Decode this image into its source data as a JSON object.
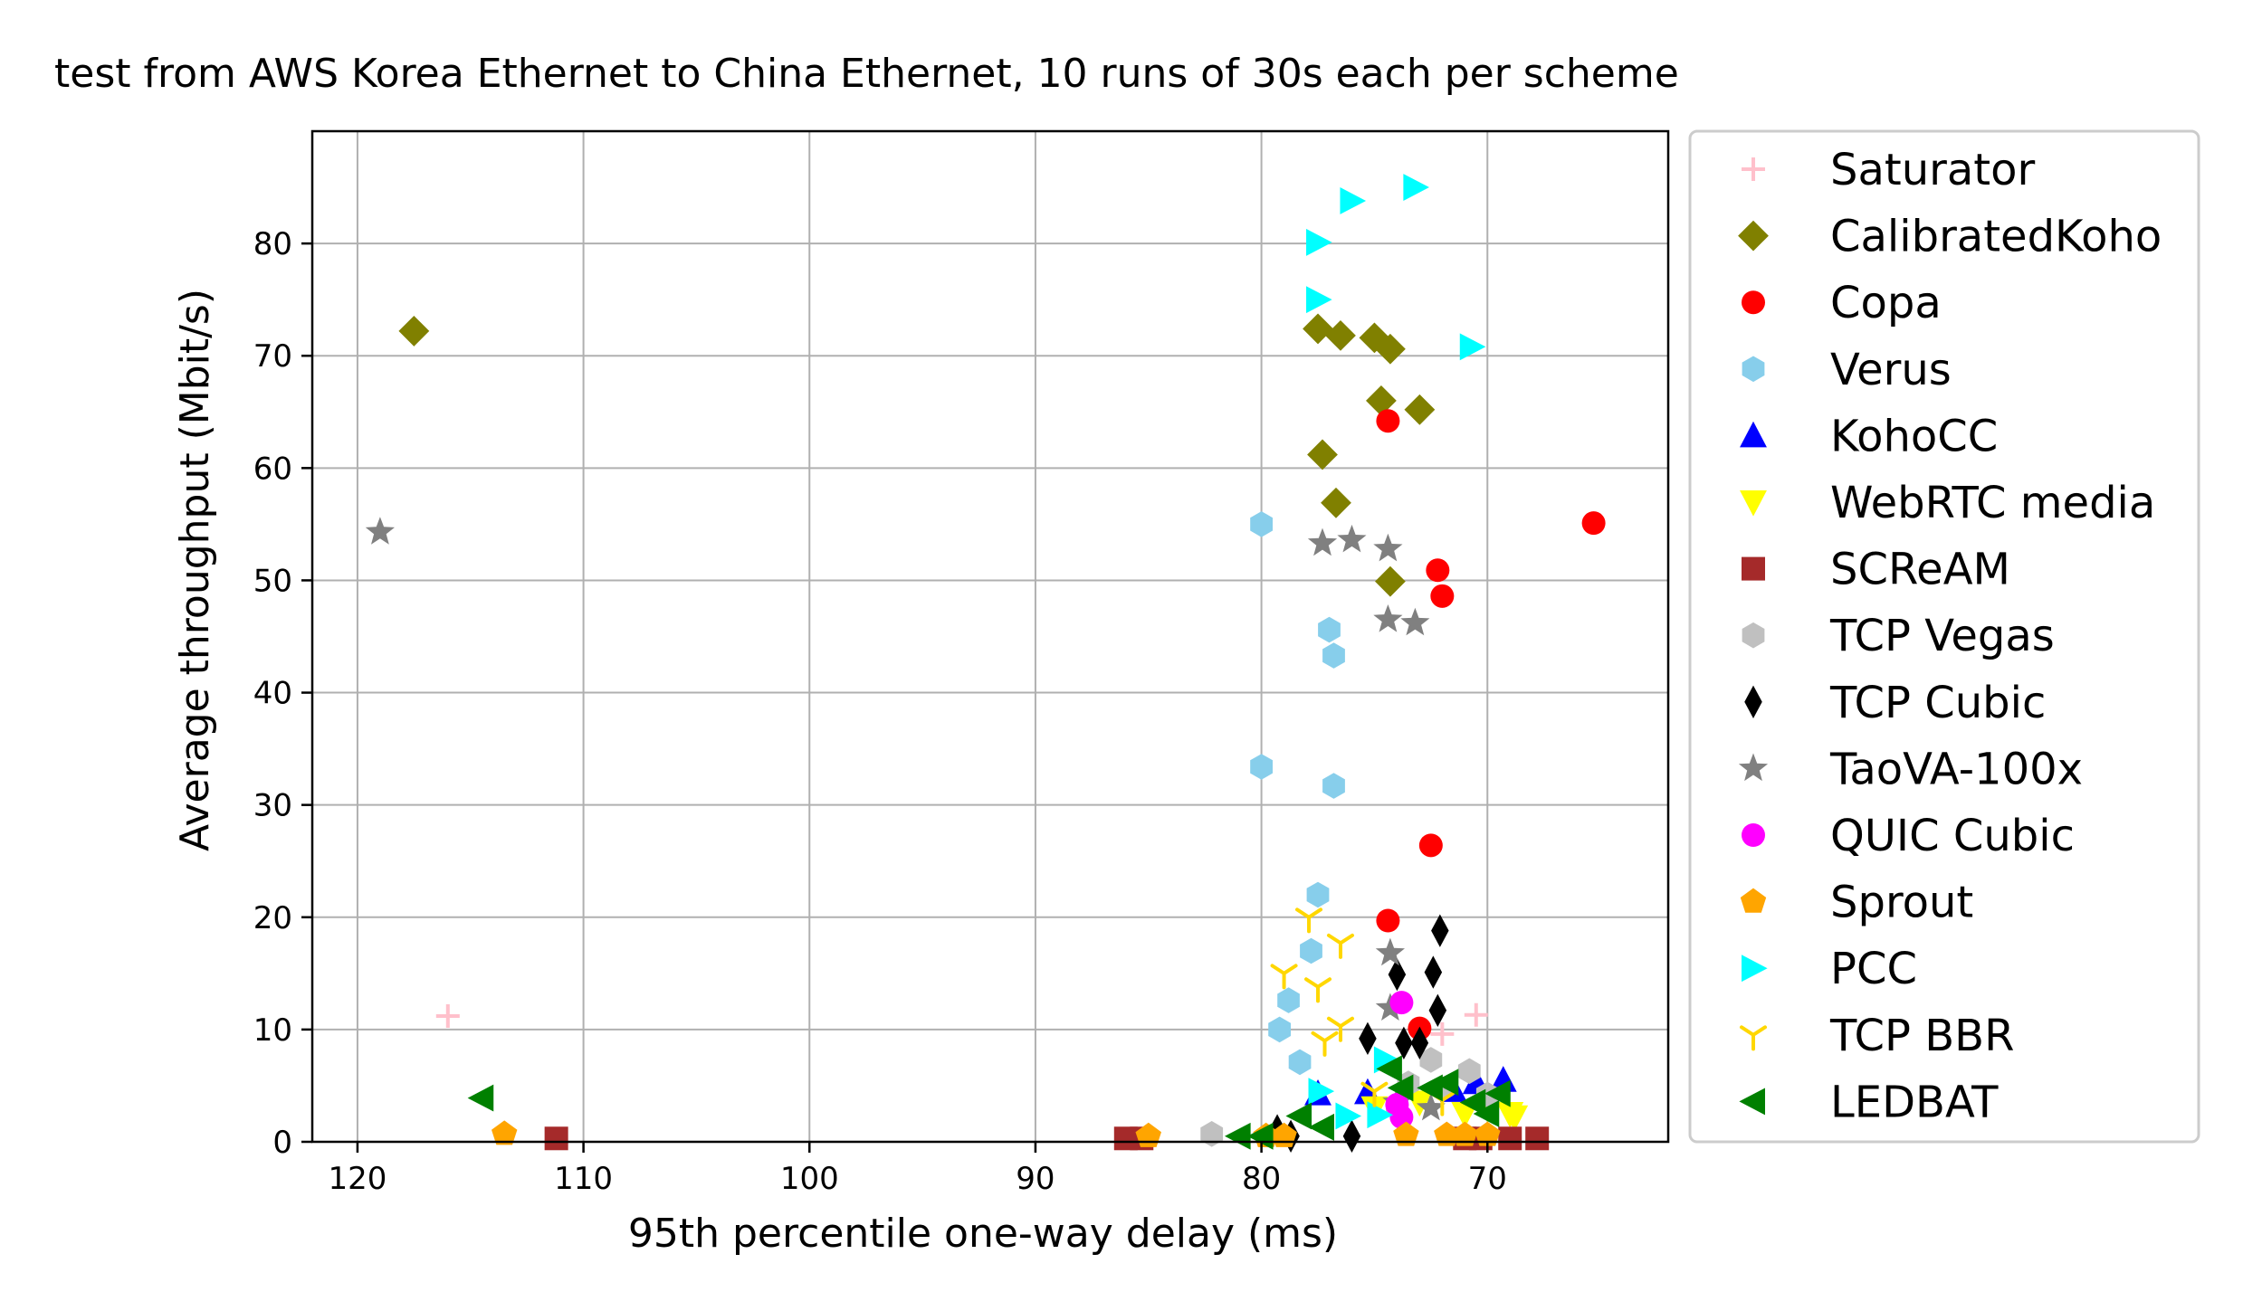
{
  "chart_data": {
    "type": "scatter",
    "title": "test from AWS Korea Ethernet to China Ethernet, 10 runs of 30s each per scheme",
    "xlabel": "95th percentile one-way delay (ms)",
    "ylabel": "Average throughput (Mbit/s)",
    "xlim": [
      122,
      62
    ],
    "ylim": [
      0,
      90
    ],
    "x_inverted": true,
    "xticks": [
      120,
      110,
      100,
      90,
      80,
      70
    ],
    "yticks": [
      0,
      10,
      20,
      30,
      40,
      50,
      60,
      70,
      80
    ],
    "grid": true,
    "legend_position": "outside-right",
    "series": [
      {
        "name": "Saturator",
        "color": "#ffc0cb",
        "marker": "plus",
        "points": [
          [
            116,
            11.2
          ],
          [
            70.5,
            11.3
          ],
          [
            72,
            9.6
          ]
        ]
      },
      {
        "name": "CalibratedKoho",
        "color": "#808000",
        "marker": "diamond",
        "points": [
          [
            117.5,
            72.2
          ],
          [
            77.5,
            72.4
          ],
          [
            76.5,
            71.8
          ],
          [
            75,
            71.6
          ],
          [
            74.3,
            70.6
          ],
          [
            74.7,
            66
          ],
          [
            73,
            65.2
          ],
          [
            77.3,
            61.2
          ],
          [
            76.7,
            56.9
          ],
          [
            74.3,
            49.9
          ]
        ]
      },
      {
        "name": "Copa",
        "color": "#ff0000",
        "marker": "circle",
        "points": [
          [
            74.4,
            64.2
          ],
          [
            65.3,
            55.1
          ],
          [
            72.2,
            50.9
          ],
          [
            72,
            48.6
          ],
          [
            72.5,
            26.4
          ],
          [
            74.4,
            19.7
          ],
          [
            73,
            10.1
          ]
        ]
      },
      {
        "name": "Verus",
        "color": "#87ceeb",
        "marker": "hexagon",
        "points": [
          [
            80,
            55
          ],
          [
            77,
            45.6
          ],
          [
            76.8,
            43.3
          ],
          [
            80,
            33.4
          ],
          [
            76.8,
            31.7
          ],
          [
            77.5,
            22
          ],
          [
            77.8,
            17
          ],
          [
            78.8,
            12.6
          ],
          [
            79.2,
            10
          ],
          [
            78.3,
            7.1
          ]
        ]
      },
      {
        "name": "KohoCC",
        "color": "#0000ff",
        "marker": "triangle-up",
        "points": [
          [
            77.5,
            4.3
          ],
          [
            75.3,
            4.4
          ],
          [
            73.5,
            4.8
          ],
          [
            70.5,
            5.3
          ],
          [
            69.3,
            5.5
          ],
          [
            71.5,
            4.6
          ]
        ]
      },
      {
        "name": "WebRTC media",
        "color": "#ffff00",
        "marker": "triangle-down",
        "points": [
          [
            71,
            2.5
          ],
          [
            69,
            2.5
          ],
          [
            70,
            3
          ],
          [
            73,
            3.5
          ],
          [
            75,
            3
          ],
          [
            68.8,
            2.2
          ]
        ]
      },
      {
        "name": "SCReAM",
        "color": "#a52a2a",
        "marker": "square",
        "points": [
          [
            111.2,
            0.3
          ],
          [
            86,
            0.3
          ],
          [
            85.3,
            0.3
          ],
          [
            71,
            0.3
          ],
          [
            70.3,
            0.3
          ],
          [
            69,
            0.3
          ],
          [
            67.8,
            0.3
          ]
        ]
      },
      {
        "name": "TCP Vegas",
        "color": "#c0c0c0",
        "marker": "hexagon",
        "points": [
          [
            82.2,
            0.7
          ],
          [
            72.5,
            7.3
          ],
          [
            70.8,
            6.3
          ],
          [
            73.5,
            5.2
          ],
          [
            72,
            4.7
          ],
          [
            70,
            4.2
          ],
          [
            74,
            3.3
          ]
        ]
      },
      {
        "name": "TCP Cubic",
        "color": "#000000",
        "marker": "thin-diamond",
        "points": [
          [
            72.1,
            18.8
          ],
          [
            74,
            14.9
          ],
          [
            72.4,
            15.1
          ],
          [
            72.2,
            11.7
          ],
          [
            75.3,
            9.2
          ],
          [
            73.7,
            8.8
          ],
          [
            73,
            8.8
          ],
          [
            76,
            0.5
          ],
          [
            79.3,
            1
          ],
          [
            78.7,
            0.5
          ]
        ]
      },
      {
        "name": "TaoVA-100x",
        "color": "#808080",
        "marker": "star",
        "points": [
          [
            119,
            54.3
          ],
          [
            77.3,
            53.3
          ],
          [
            76,
            53.6
          ],
          [
            74.4,
            52.8
          ],
          [
            74.4,
            46.5
          ],
          [
            73.2,
            46.2
          ],
          [
            74.3,
            16.8
          ],
          [
            74.3,
            11.9
          ],
          [
            74,
            3.5
          ],
          [
            72.5,
            3
          ]
        ]
      },
      {
        "name": "QUIC Cubic",
        "color": "#ff00ff",
        "marker": "circle",
        "points": [
          [
            73.8,
            12.4
          ],
          [
            74,
            3.3
          ],
          [
            73.8,
            2.2
          ]
        ]
      },
      {
        "name": "Sprout",
        "color": "#ffa500",
        "marker": "pentagon",
        "points": [
          [
            113.5,
            0.7
          ],
          [
            85,
            0.5
          ],
          [
            79.8,
            0.5
          ],
          [
            79,
            0.5
          ],
          [
            73.6,
            0.6
          ],
          [
            71.8,
            0.6
          ],
          [
            71,
            0.6
          ],
          [
            70,
            0.6
          ]
        ]
      },
      {
        "name": "PCC",
        "color": "#00ffff",
        "marker": "triangle-right",
        "points": [
          [
            73.2,
            85
          ],
          [
            76,
            83.8
          ],
          [
            77.5,
            80.1
          ],
          [
            77.5,
            75
          ],
          [
            70.7,
            70.8
          ],
          [
            77.4,
            4.5
          ],
          [
            76.2,
            2.3
          ],
          [
            74.8,
            2.4
          ],
          [
            74.5,
            7.3
          ]
        ]
      },
      {
        "name": "TCP BBR",
        "color": "#ffd700",
        "marker": "tri-down",
        "points": [
          [
            77.9,
            20
          ],
          [
            76.5,
            17.7
          ],
          [
            79,
            15
          ],
          [
            77.5,
            13.8
          ],
          [
            76.5,
            10.3
          ],
          [
            77.2,
            9
          ],
          [
            75,
            4.5
          ],
          [
            72,
            3.7
          ]
        ]
      },
      {
        "name": "LEDBAT",
        "color": "#008000",
        "marker": "triangle-left",
        "points": [
          [
            114.5,
            3.9
          ],
          [
            81,
            0.5
          ],
          [
            80,
            0.5
          ],
          [
            78.3,
            2.3
          ],
          [
            77.3,
            1.3
          ],
          [
            74.3,
            6.5
          ],
          [
            73.8,
            4.8
          ],
          [
            72.5,
            4.8
          ],
          [
            71.8,
            5.3
          ],
          [
            70.6,
            3.5
          ],
          [
            70,
            2.5
          ],
          [
            69.5,
            4.3
          ]
        ]
      }
    ]
  }
}
